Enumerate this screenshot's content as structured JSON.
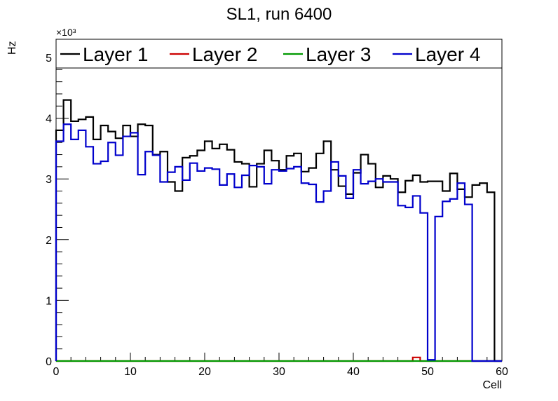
{
  "chart_data": {
    "type": "line",
    "style": "step-histogram",
    "title": "SL1, run 6400",
    "xlabel": "Cell",
    "ylabel": "Hz",
    "y_exponent_label": "×10³",
    "y_scale": 1000,
    "xlim": [
      0,
      60
    ],
    "ylim": [
      0,
      5300
    ],
    "x_ticks": [
      0,
      10,
      20,
      30,
      40,
      50,
      60
    ],
    "y_ticks": [
      0,
      1,
      2,
      3,
      4,
      5
    ],
    "bin_width": 1,
    "legend_position": "top",
    "series": [
      {
        "name": "Layer 1",
        "color": "#000000",
        "values": [
          3800,
          4300,
          3950,
          3980,
          4020,
          3650,
          3880,
          3780,
          3670,
          3880,
          3700,
          3900,
          3880,
          3400,
          3450,
          2950,
          2800,
          3350,
          3380,
          3470,
          3620,
          3500,
          3570,
          3480,
          3280,
          3250,
          2870,
          3250,
          3470,
          3300,
          3150,
          3380,
          3420,
          3120,
          3180,
          3420,
          3620,
          3150,
          2880,
          2750,
          3100,
          3400,
          3250,
          2860,
          3050,
          3000,
          2780,
          2970,
          3060,
          2950,
          2960,
          2960,
          2800,
          3090,
          2830,
          2700,
          2900,
          2930,
          2780,
          0
        ]
      },
      {
        "name": "Layer 2",
        "color": "#cc0000",
        "values": [
          0,
          0,
          0,
          0,
          0,
          0,
          0,
          0,
          0,
          0,
          0,
          0,
          0,
          0,
          0,
          0,
          0,
          0,
          0,
          0,
          0,
          0,
          0,
          0,
          0,
          0,
          0,
          0,
          0,
          0,
          0,
          0,
          0,
          0,
          0,
          0,
          0,
          0,
          0,
          0,
          0,
          0,
          0,
          0,
          0,
          0,
          0,
          0,
          60,
          0,
          0,
          0,
          0,
          0,
          0,
          0,
          0,
          0,
          0,
          0
        ]
      },
      {
        "name": "Layer 3",
        "color": "#009900",
        "values": [
          0,
          0,
          0,
          0,
          0,
          0,
          0,
          0,
          0,
          0,
          0,
          0,
          0,
          0,
          0,
          0,
          0,
          0,
          0,
          0,
          0,
          0,
          0,
          0,
          0,
          0,
          0,
          0,
          0,
          0,
          0,
          0,
          0,
          0,
          0,
          0,
          0,
          0,
          0,
          0,
          0,
          0,
          0,
          0,
          0,
          0,
          0,
          0,
          0,
          0,
          0,
          0,
          0,
          0,
          0,
          0,
          0,
          0,
          0,
          0
        ]
      },
      {
        "name": "Layer 4",
        "color": "#0000cc",
        "values": [
          3620,
          3900,
          3650,
          3800,
          3530,
          3250,
          3290,
          3600,
          3390,
          3700,
          3760,
          3070,
          3450,
          3390,
          2950,
          3110,
          3200,
          2980,
          3260,
          3130,
          3180,
          3160,
          2900,
          3080,
          2860,
          3060,
          3220,
          3200,
          2920,
          3150,
          3130,
          3170,
          3200,
          2930,
          2910,
          2620,
          2800,
          3280,
          3050,
          2680,
          3150,
          2920,
          2960,
          3000,
          2950,
          2950,
          2560,
          2530,
          2720,
          2440,
          20,
          2380,
          2630,
          2670,
          2930,
          2580,
          0,
          0,
          0,
          0
        ]
      }
    ]
  }
}
